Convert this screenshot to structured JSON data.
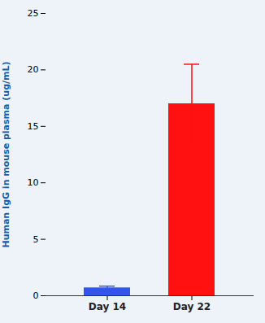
{
  "chart_data": {
    "type": "bar",
    "categories": [
      "Day 14",
      "Day 22"
    ],
    "values": [
      0.7,
      17.0
    ],
    "errors": [
      0.15,
      3.5
    ],
    "colors": [
      "#3355ee",
      "#ff1111"
    ],
    "ylabel": "Human IgG in mouse plasma (ug/mL)",
    "ylim": [
      0,
      25
    ],
    "yticks": [
      0,
      5,
      10,
      15,
      20,
      25
    ],
    "grid": false
  }
}
